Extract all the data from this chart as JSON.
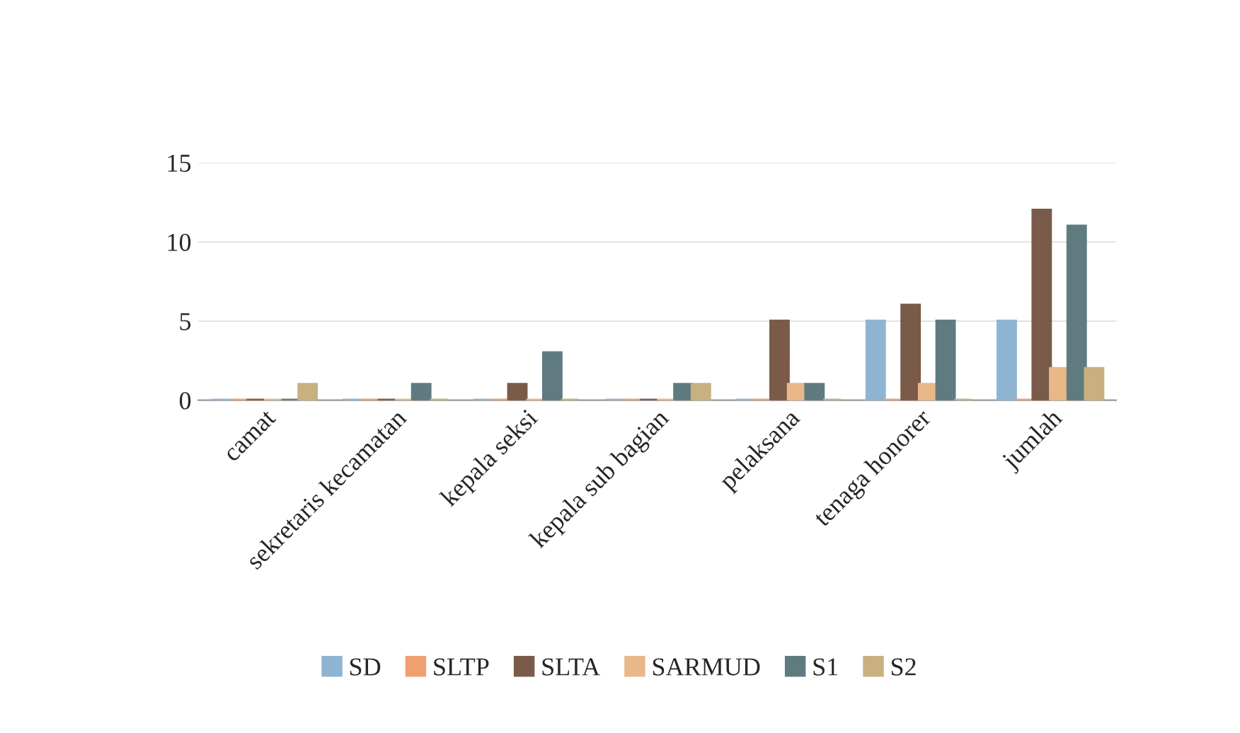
{
  "chart_data": {
    "type": "bar",
    "categories": [
      "camat",
      "sekretaris kecamatan",
      "kepala seksi",
      "kepala sub bagian",
      "pelaksana",
      "tenaga honorer",
      "jumlah"
    ],
    "series": [
      {
        "name": "SD",
        "color": "#8fb4d2",
        "values": [
          0,
          0,
          0,
          0,
          0,
          5,
          5
        ]
      },
      {
        "name": "SLTP",
        "color": "#f0a070",
        "values": [
          0,
          0,
          0,
          0,
          0,
          0,
          0
        ]
      },
      {
        "name": "SLTA",
        "color": "#7a5a48",
        "values": [
          0,
          0,
          1,
          0,
          5,
          6,
          12
        ]
      },
      {
        "name": "SARMUD",
        "color": "#e8b888",
        "values": [
          0,
          0,
          0,
          0,
          1,
          1,
          2
        ]
      },
      {
        "name": "S1",
        "color": "#5f7b80",
        "values": [
          0,
          1,
          3,
          1,
          1,
          5,
          11
        ]
      },
      {
        "name": "S2",
        "color": "#c8b080",
        "values": [
          1,
          0,
          0,
          1,
          0,
          0,
          2
        ]
      }
    ],
    "ylim": [
      0,
      15
    ],
    "yticks": [
      0,
      5,
      10,
      15
    ],
    "grid": "y",
    "legend": "bottom"
  }
}
